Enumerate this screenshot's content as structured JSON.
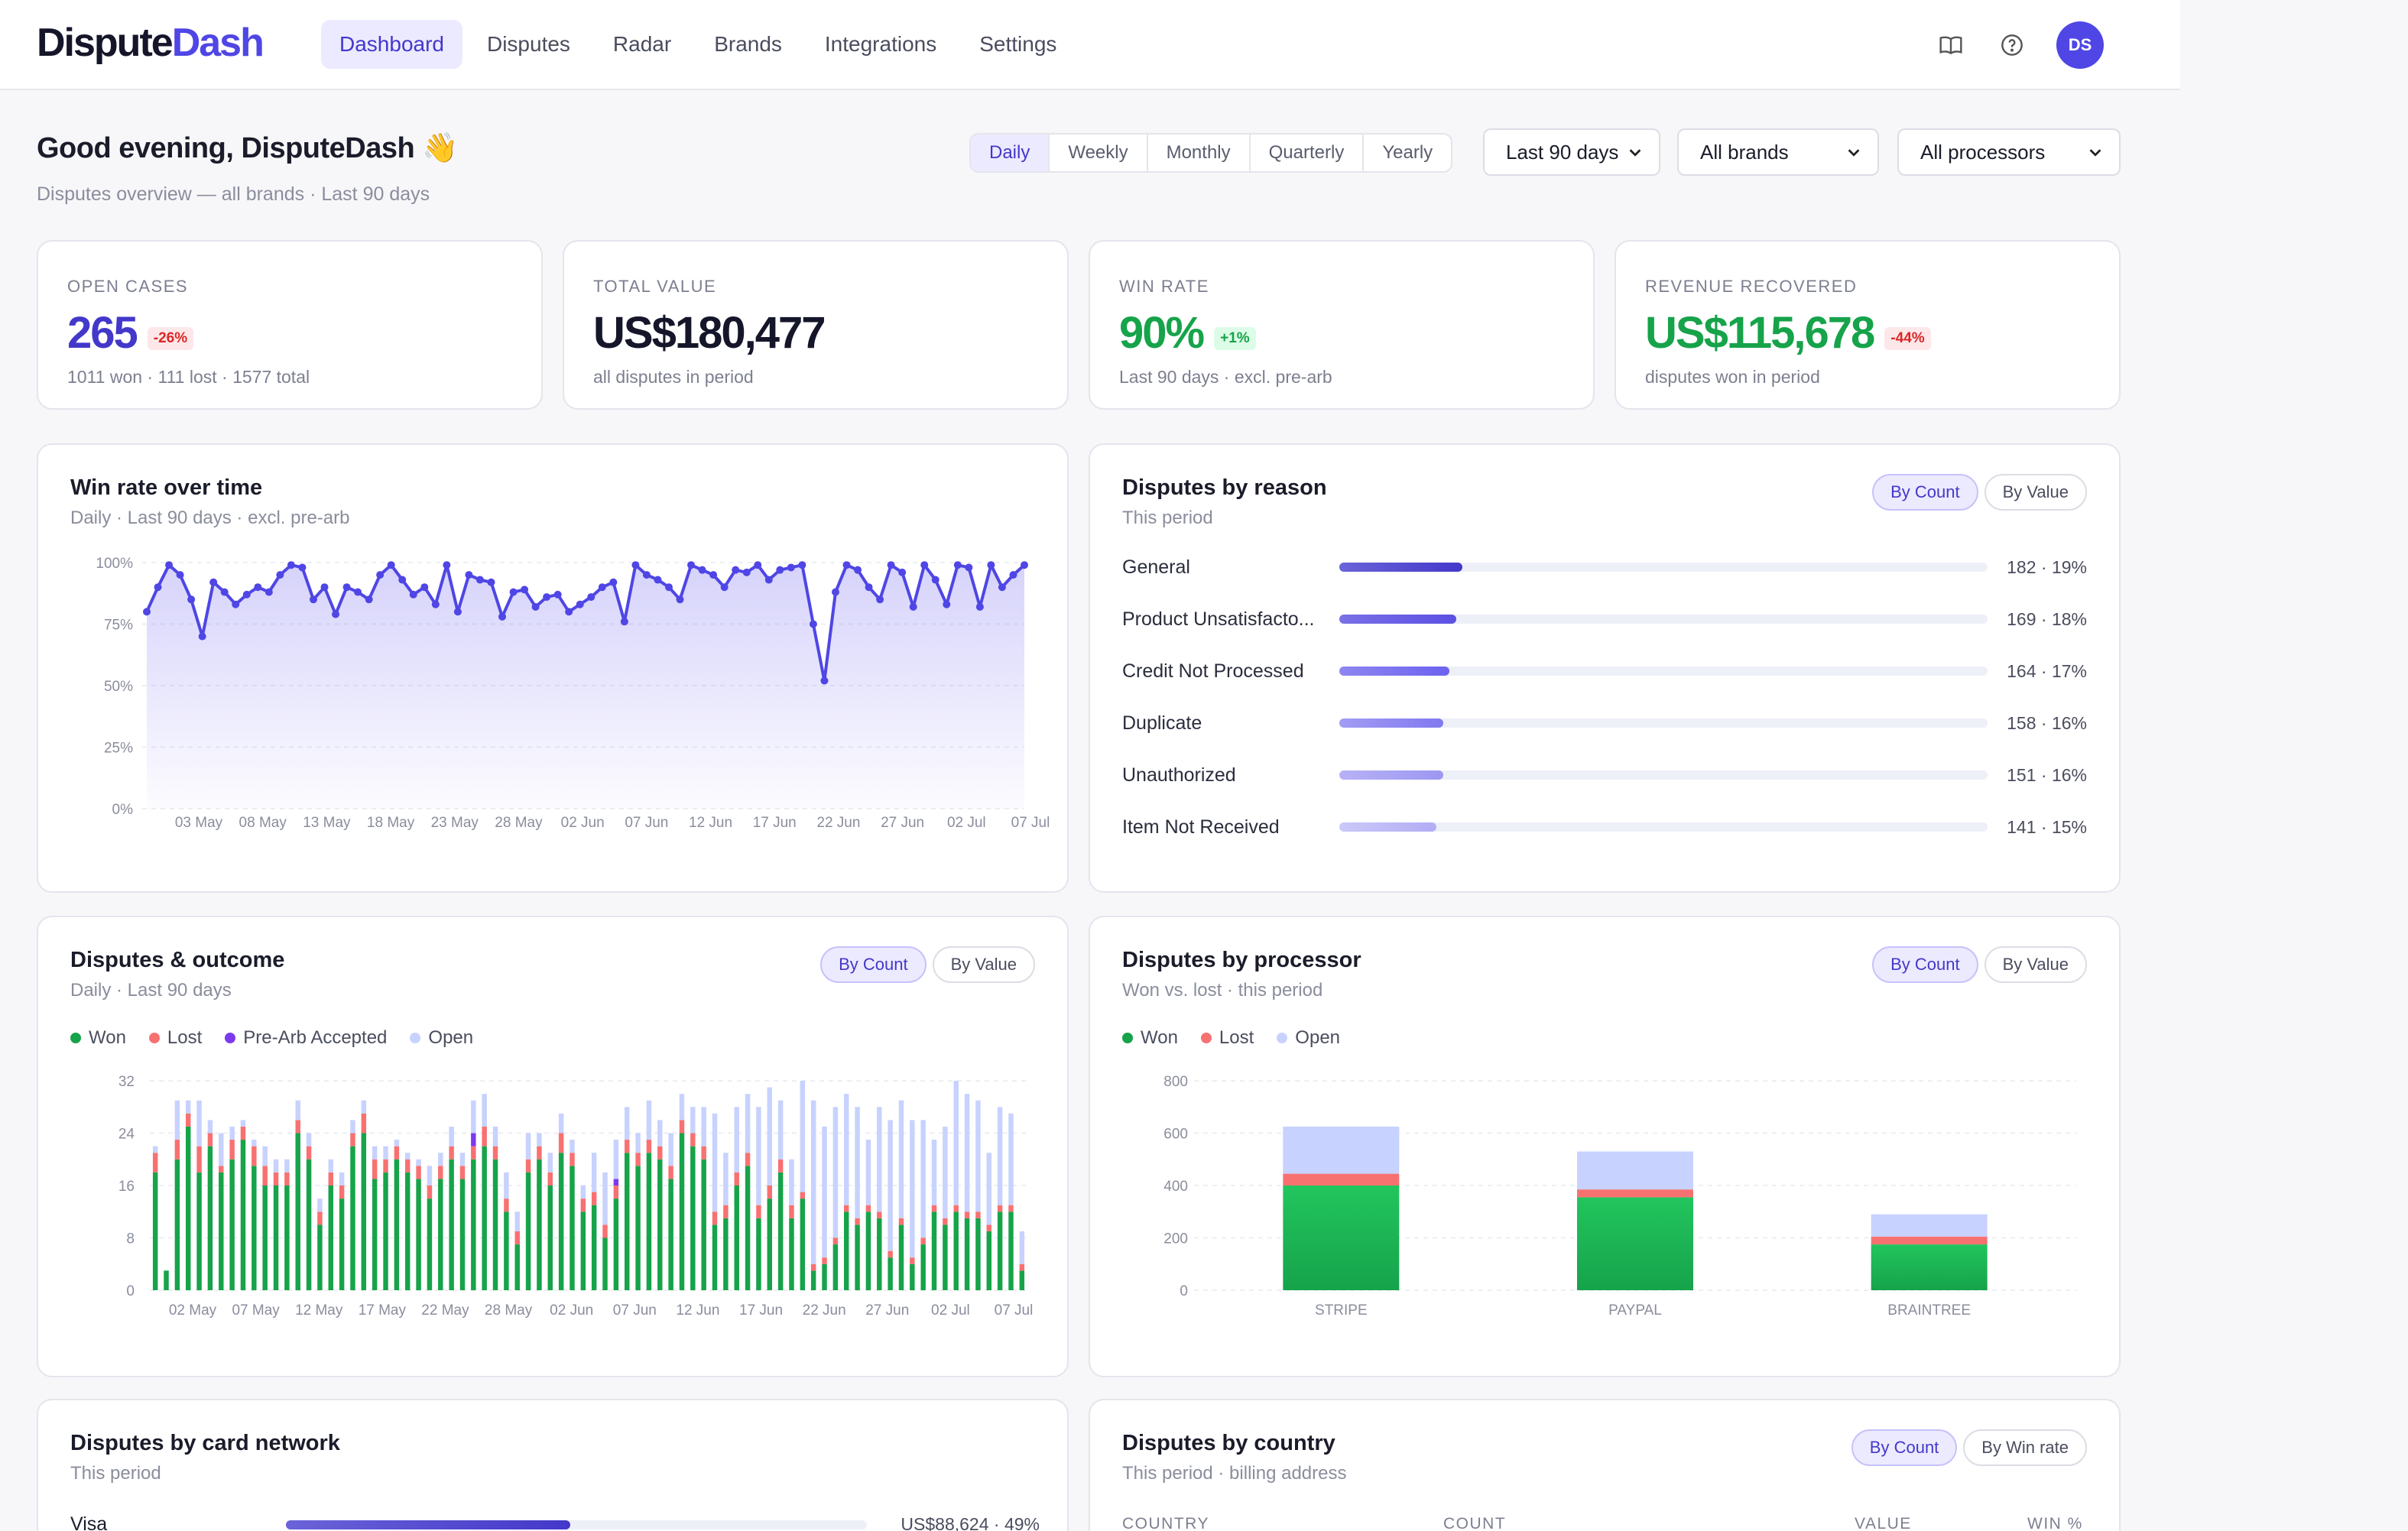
{
  "app": {
    "logo_main": "Dispute",
    "logo_accent": "Dash",
    "avatar_initials": "DS"
  },
  "nav": {
    "items": [
      {
        "label": "Dashboard",
        "active": true
      },
      {
        "label": "Disputes",
        "active": false
      },
      {
        "label": "Radar",
        "active": false
      },
      {
        "label": "Brands",
        "active": false
      },
      {
        "label": "Integrations",
        "active": false
      },
      {
        "label": "Settings",
        "active": false
      }
    ]
  },
  "header": {
    "greeting": "Good evening, DisputeDash",
    "greeting_emoji": "👋",
    "subtitle": "Disputes overview — all brands · Last 90 days",
    "period_tabs": [
      "Daily",
      "Weekly",
      "Monthly",
      "Quarterly",
      "Yearly"
    ],
    "active_period": "Daily",
    "range_select": "Last 90 days",
    "brand_select": "All brands",
    "processor_select": "All processors"
  },
  "kpis": [
    {
      "label": "OPEN CASES",
      "value": "265",
      "badge": "-26%",
      "badge_type": "red",
      "sub": "1011 won · 111 lost · 1577 total",
      "color": "#4338ca"
    },
    {
      "label": "TOTAL VALUE",
      "value": "US$180,477",
      "badge": "",
      "badge_type": "",
      "sub": "all disputes in period",
      "color": "#15162a"
    },
    {
      "label": "WIN RATE",
      "value": "90%",
      "badge": "+1%",
      "badge_type": "green",
      "sub": "Last 90 days · excl. pre-arb",
      "color": "#16a34a"
    },
    {
      "label": "REVENUE RECOVERED",
      "value": "US$115,678",
      "badge": "-44%",
      "badge_type": "red",
      "sub": "disputes won in period",
      "color": "#16a34a"
    }
  ],
  "winrate": {
    "title": "Win rate over time",
    "subtitle": "Daily · Last 90 days · excl. pre-arb",
    "chart_data": {
      "type": "line",
      "y_ticks": [
        "100%",
        "75%",
        "50%",
        "25%",
        "0%"
      ],
      "ylim": [
        0,
        100
      ],
      "x_ticks": [
        "03 May",
        "08 May",
        "13 May",
        "18 May",
        "23 May",
        "28 May",
        "02 Jun",
        "07 Jun",
        "12 Jun",
        "17 Jun",
        "22 Jun",
        "27 Jun",
        "02 Jul",
        "07 Jul"
      ],
      "values": [
        80,
        90,
        99,
        95,
        85,
        70,
        92,
        88,
        83,
        87,
        90,
        88,
        95,
        99,
        98,
        85,
        90,
        79,
        90,
        88,
        85,
        95,
        99,
        93,
        87,
        90,
        83,
        99,
        80,
        95,
        93,
        92,
        78,
        88,
        89,
        82,
        86,
        87,
        80,
        83,
        86,
        90,
        92,
        76,
        99,
        95,
        93,
        90,
        85,
        99,
        97,
        95,
        90,
        97,
        96,
        99,
        93,
        97,
        98,
        99,
        75,
        52,
        88,
        99,
        97,
        90,
        85,
        99,
        96,
        82,
        99,
        93,
        83,
        99,
        98,
        82,
        99,
        90,
        95,
        99
      ]
    }
  },
  "reasons": {
    "title": "Disputes by reason",
    "subtitle": "This period",
    "toggle": [
      "By Count",
      "By Value"
    ],
    "chart_data": {
      "type": "bar",
      "categories": [
        "General",
        "Product Unsatisfacto...",
        "Credit Not Processed",
        "Duplicate",
        "Unauthorized",
        "Item Not Received"
      ],
      "values": [
        182,
        169,
        164,
        158,
        151,
        141
      ],
      "labels": [
        "182 · 19%",
        "169 · 18%",
        "164 · 17%",
        "158 · 16%",
        "151 · 16%",
        "141 · 15%"
      ],
      "fill_percent": [
        19,
        18,
        17,
        16,
        16,
        15
      ]
    }
  },
  "outcome": {
    "title": "Disputes & outcome",
    "subtitle": "Daily · Last 90 days",
    "toggle": [
      "By Count",
      "By Value"
    ],
    "legend": [
      "Won",
      "Lost",
      "Pre-Arb Accepted",
      "Open"
    ],
    "colors": {
      "won": "#16a34a",
      "lost": "#f87171",
      "prearb": "#7c3aed",
      "open": "#c7d2fe"
    },
    "chart_data": {
      "type": "bar",
      "stacked": true,
      "y_ticks": [
        "32",
        "24",
        "16",
        "8",
        "0"
      ],
      "ylim": [
        0,
        32
      ],
      "x_ticks": [
        "02 May",
        "07 May",
        "12 May",
        "17 May",
        "22 May",
        "28 May",
        "02 Jun",
        "07 Jun",
        "12 Jun",
        "17 Jun",
        "22 Jun",
        "27 Jun",
        "02 Jul",
        "07 Jul"
      ],
      "won": [
        18,
        3,
        20,
        25,
        18,
        22,
        18,
        20,
        23,
        19,
        16,
        16,
        16,
        24,
        20,
        10,
        16,
        14,
        22,
        24,
        17,
        18,
        20,
        18,
        17,
        14,
        17,
        20,
        17,
        20,
        22,
        20,
        12,
        7,
        18,
        20,
        16,
        21,
        19,
        12,
        13,
        8,
        14,
        21,
        19,
        21,
        20,
        17,
        24,
        22,
        20,
        10,
        11,
        16,
        19,
        11,
        14,
        18,
        11,
        14,
        3,
        4,
        7,
        12,
        10,
        12,
        11,
        5,
        10,
        4,
        7,
        12,
        10,
        12,
        11,
        11,
        9,
        12,
        12,
        3
      ],
      "lost": [
        3,
        0,
        3,
        2,
        4,
        2,
        1,
        3,
        2,
        3,
        3,
        2,
        2,
        2,
        2,
        2,
        2,
        2,
        2,
        3,
        3,
        2,
        2,
        2,
        2,
        2,
        2,
        2,
        2,
        2,
        3,
        2,
        2,
        2,
        2,
        2,
        2,
        3,
        2,
        2,
        2,
        2,
        2,
        2,
        2,
        2,
        2,
        2,
        2,
        2,
        2,
        2,
        2,
        2,
        2,
        2,
        2,
        2,
        2,
        1,
        1,
        1,
        1,
        1,
        1,
        1,
        1,
        1,
        1,
        1,
        1,
        1,
        1,
        1,
        1,
        1,
        1,
        1,
        1,
        1
      ],
      "prearb": [
        0,
        0,
        0,
        0,
        0,
        0,
        0,
        0,
        0,
        0,
        0,
        0,
        0,
        0,
        0,
        0,
        0,
        0,
        0,
        0,
        0,
        0,
        0,
        0,
        0,
        0,
        0,
        0,
        0,
        2,
        0,
        0,
        0,
        0,
        0,
        0,
        0,
        0,
        0,
        0,
        0,
        0,
        1,
        0,
        0,
        0,
        0,
        0,
        0,
        0,
        0,
        0,
        0,
        0,
        0,
        0,
        0,
        0,
        0,
        0,
        0,
        0,
        0,
        0,
        0,
        0,
        0,
        0,
        0,
        0,
        0,
        0,
        0,
        0,
        0,
        0,
        0,
        0,
        0,
        0
      ],
      "open": [
        1,
        0,
        6,
        2,
        7,
        2,
        5,
        2,
        1,
        1,
        3,
        2,
        2,
        3,
        2,
        2,
        2,
        2,
        2,
        2,
        2,
        2,
        1,
        1,
        1,
        3,
        2,
        3,
        2,
        5,
        5,
        3,
        4,
        3,
        4,
        2,
        3,
        3,
        2,
        2,
        6,
        8,
        6,
        5,
        3,
        6,
        4,
        5,
        4,
        4,
        6,
        15,
        8,
        10,
        9,
        15,
        15,
        9,
        7,
        17,
        25,
        20,
        20,
        17,
        17,
        10,
        16,
        20,
        18,
        21,
        18,
        10,
        14,
        19,
        18,
        17,
        11,
        15,
        14,
        5
      ]
    }
  },
  "processors": {
    "title": "Disputes by processor",
    "subtitle": "Won vs. lost · this period",
    "toggle": [
      "By Count",
      "By Value"
    ],
    "legend": [
      "Won",
      "Lost",
      "Open"
    ],
    "chart_data": {
      "type": "bar",
      "stacked": true,
      "y_ticks": [
        "800",
        "600",
        "400",
        "200",
        "0"
      ],
      "ylim": [
        0,
        800
      ],
      "categories": [
        "STRIPE",
        "PAYPAL",
        "BRAINTREE"
      ],
      "series": [
        {
          "name": "Won",
          "values": [
            400,
            355,
            175
          ]
        },
        {
          "name": "Lost",
          "values": [
            45,
            30,
            30
          ]
        },
        {
          "name": "Open",
          "values": [
            180,
            145,
            85
          ]
        }
      ]
    }
  },
  "networks": {
    "title": "Disputes by card network",
    "subtitle": "This period",
    "rows": [
      {
        "label": "Visa",
        "value": "US$88,624 · 49%",
        "percent": 49
      }
    ]
  },
  "countries": {
    "title": "Disputes by country",
    "subtitle": "This period · billing address",
    "toggle": [
      "By Count",
      "By Win rate"
    ],
    "columns": [
      "COUNTRY",
      "COUNT",
      "VALUE",
      "WIN %"
    ]
  }
}
